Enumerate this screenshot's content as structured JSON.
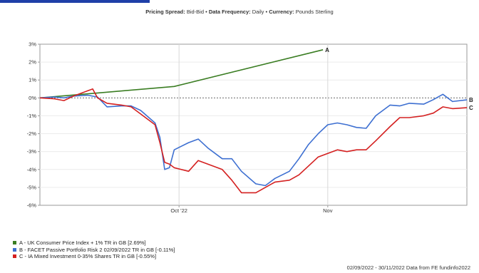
{
  "header": {
    "spread_label": "Pricing Spread:",
    "spread_value": "Bid-Bid",
    "frequency_label": "Data Frequency:",
    "frequency_value": "Daily",
    "currency_label": "Currency:",
    "currency_value": "Pounds Sterling",
    "separator": "•"
  },
  "footer": "02/09/2022 - 30/11/2022 Data from FE fundinfo2022",
  "chart_data": {
    "type": "line",
    "title": "",
    "xlabel": "",
    "ylabel": "",
    "x_range": [
      "2022-09-02",
      "2022-11-30"
    ],
    "ylim": [
      -6,
      3
    ],
    "y_ticks": [
      "3%",
      "2%",
      "1%",
      "0%",
      "-1%",
      "-2%",
      "-3%",
      "-4%",
      "-5%",
      "-6%"
    ],
    "x_ticks": [
      {
        "date": "2022-10-01",
        "label": "Oct '22"
      },
      {
        "date": "2022-11-01",
        "label": "Nov"
      }
    ],
    "grid": true,
    "legend_position": "bottom-left",
    "series": [
      {
        "id": "A",
        "legend": "A - UK Consumer Price Index + 1% TR in GB [2.69%]",
        "color": "#3a7d22",
        "points": [
          [
            "2022-09-02",
            0.0
          ],
          [
            "2022-09-30",
            0.64
          ],
          [
            "2022-10-31",
            2.69
          ]
        ]
      },
      {
        "id": "B",
        "legend": "B - FACET Passive Portfolio Risk 2 02/09/2022 TR in GB [-0.11%]",
        "color": "#3d6fd1",
        "points": [
          [
            "2022-09-02",
            0.0
          ],
          [
            "2022-09-05",
            0.05
          ],
          [
            "2022-09-07",
            0.0
          ],
          [
            "2022-09-09",
            0.1
          ],
          [
            "2022-09-12",
            0.15
          ],
          [
            "2022-09-14",
            0.05
          ],
          [
            "2022-09-16",
            -0.5
          ],
          [
            "2022-09-19",
            -0.45
          ],
          [
            "2022-09-21",
            -0.45
          ],
          [
            "2022-09-23",
            -0.7
          ],
          [
            "2022-09-26",
            -1.4
          ],
          [
            "2022-09-27",
            -2.2
          ],
          [
            "2022-09-28",
            -4.0
          ],
          [
            "2022-09-29",
            -3.9
          ],
          [
            "2022-09-30",
            -2.9
          ],
          [
            "2022-10-03",
            -2.5
          ],
          [
            "2022-10-05",
            -2.3
          ],
          [
            "2022-10-07",
            -2.8
          ],
          [
            "2022-10-10",
            -3.4
          ],
          [
            "2022-10-12",
            -3.4
          ],
          [
            "2022-10-14",
            -4.1
          ],
          [
            "2022-10-17",
            -4.8
          ],
          [
            "2022-10-19",
            -4.9
          ],
          [
            "2022-10-21",
            -4.5
          ],
          [
            "2022-10-24",
            -4.1
          ],
          [
            "2022-10-26",
            -3.4
          ],
          [
            "2022-10-28",
            -2.6
          ],
          [
            "2022-10-30",
            -2.0
          ],
          [
            "2022-11-01",
            -1.5
          ],
          [
            "2022-11-03",
            -1.4
          ],
          [
            "2022-11-05",
            -1.5
          ],
          [
            "2022-11-07",
            -1.65
          ],
          [
            "2022-11-09",
            -1.7
          ],
          [
            "2022-11-11",
            -1.0
          ],
          [
            "2022-11-14",
            -0.4
          ],
          [
            "2022-11-16",
            -0.45
          ],
          [
            "2022-11-18",
            -0.3
          ],
          [
            "2022-11-21",
            -0.35
          ],
          [
            "2022-11-23",
            -0.1
          ],
          [
            "2022-11-25",
            0.2
          ],
          [
            "2022-11-27",
            -0.2
          ],
          [
            "2022-11-30",
            -0.11
          ]
        ]
      },
      {
        "id": "C",
        "legend": "C - IA Mixed Investment 0-35% Shares TR in GB [-0.55%]",
        "color": "#d42020",
        "points": [
          [
            "2022-09-02",
            0.0
          ],
          [
            "2022-09-05",
            -0.05
          ],
          [
            "2022-09-07",
            -0.15
          ],
          [
            "2022-09-09",
            0.1
          ],
          [
            "2022-09-12",
            0.4
          ],
          [
            "2022-09-13",
            0.5
          ],
          [
            "2022-09-14",
            0.0
          ],
          [
            "2022-09-16",
            -0.3
          ],
          [
            "2022-09-19",
            -0.4
          ],
          [
            "2022-09-21",
            -0.5
          ],
          [
            "2022-09-23",
            -0.9
          ],
          [
            "2022-09-26",
            -1.5
          ],
          [
            "2022-09-27",
            -2.5
          ],
          [
            "2022-09-28",
            -3.6
          ],
          [
            "2022-09-29",
            -3.7
          ],
          [
            "2022-09-30",
            -3.9
          ],
          [
            "2022-10-03",
            -4.1
          ],
          [
            "2022-10-05",
            -3.5
          ],
          [
            "2022-10-07",
            -3.7
          ],
          [
            "2022-10-10",
            -4.0
          ],
          [
            "2022-10-12",
            -4.6
          ],
          [
            "2022-10-14",
            -5.3
          ],
          [
            "2022-10-17",
            -5.3
          ],
          [
            "2022-10-19",
            -5.0
          ],
          [
            "2022-10-21",
            -4.7
          ],
          [
            "2022-10-24",
            -4.6
          ],
          [
            "2022-10-26",
            -4.3
          ],
          [
            "2022-10-28",
            -3.8
          ],
          [
            "2022-10-30",
            -3.3
          ],
          [
            "2022-11-01",
            -3.1
          ],
          [
            "2022-11-03",
            -2.9
          ],
          [
            "2022-11-05",
            -3.0
          ],
          [
            "2022-11-07",
            -2.9
          ],
          [
            "2022-11-09",
            -2.9
          ],
          [
            "2022-11-11",
            -2.4
          ],
          [
            "2022-11-14",
            -1.6
          ],
          [
            "2022-11-16",
            -1.1
          ],
          [
            "2022-11-18",
            -1.1
          ],
          [
            "2022-11-21",
            -1.0
          ],
          [
            "2022-11-23",
            -0.85
          ],
          [
            "2022-11-25",
            -0.5
          ],
          [
            "2022-11-27",
            -0.6
          ],
          [
            "2022-11-30",
            -0.55
          ]
        ]
      }
    ]
  }
}
